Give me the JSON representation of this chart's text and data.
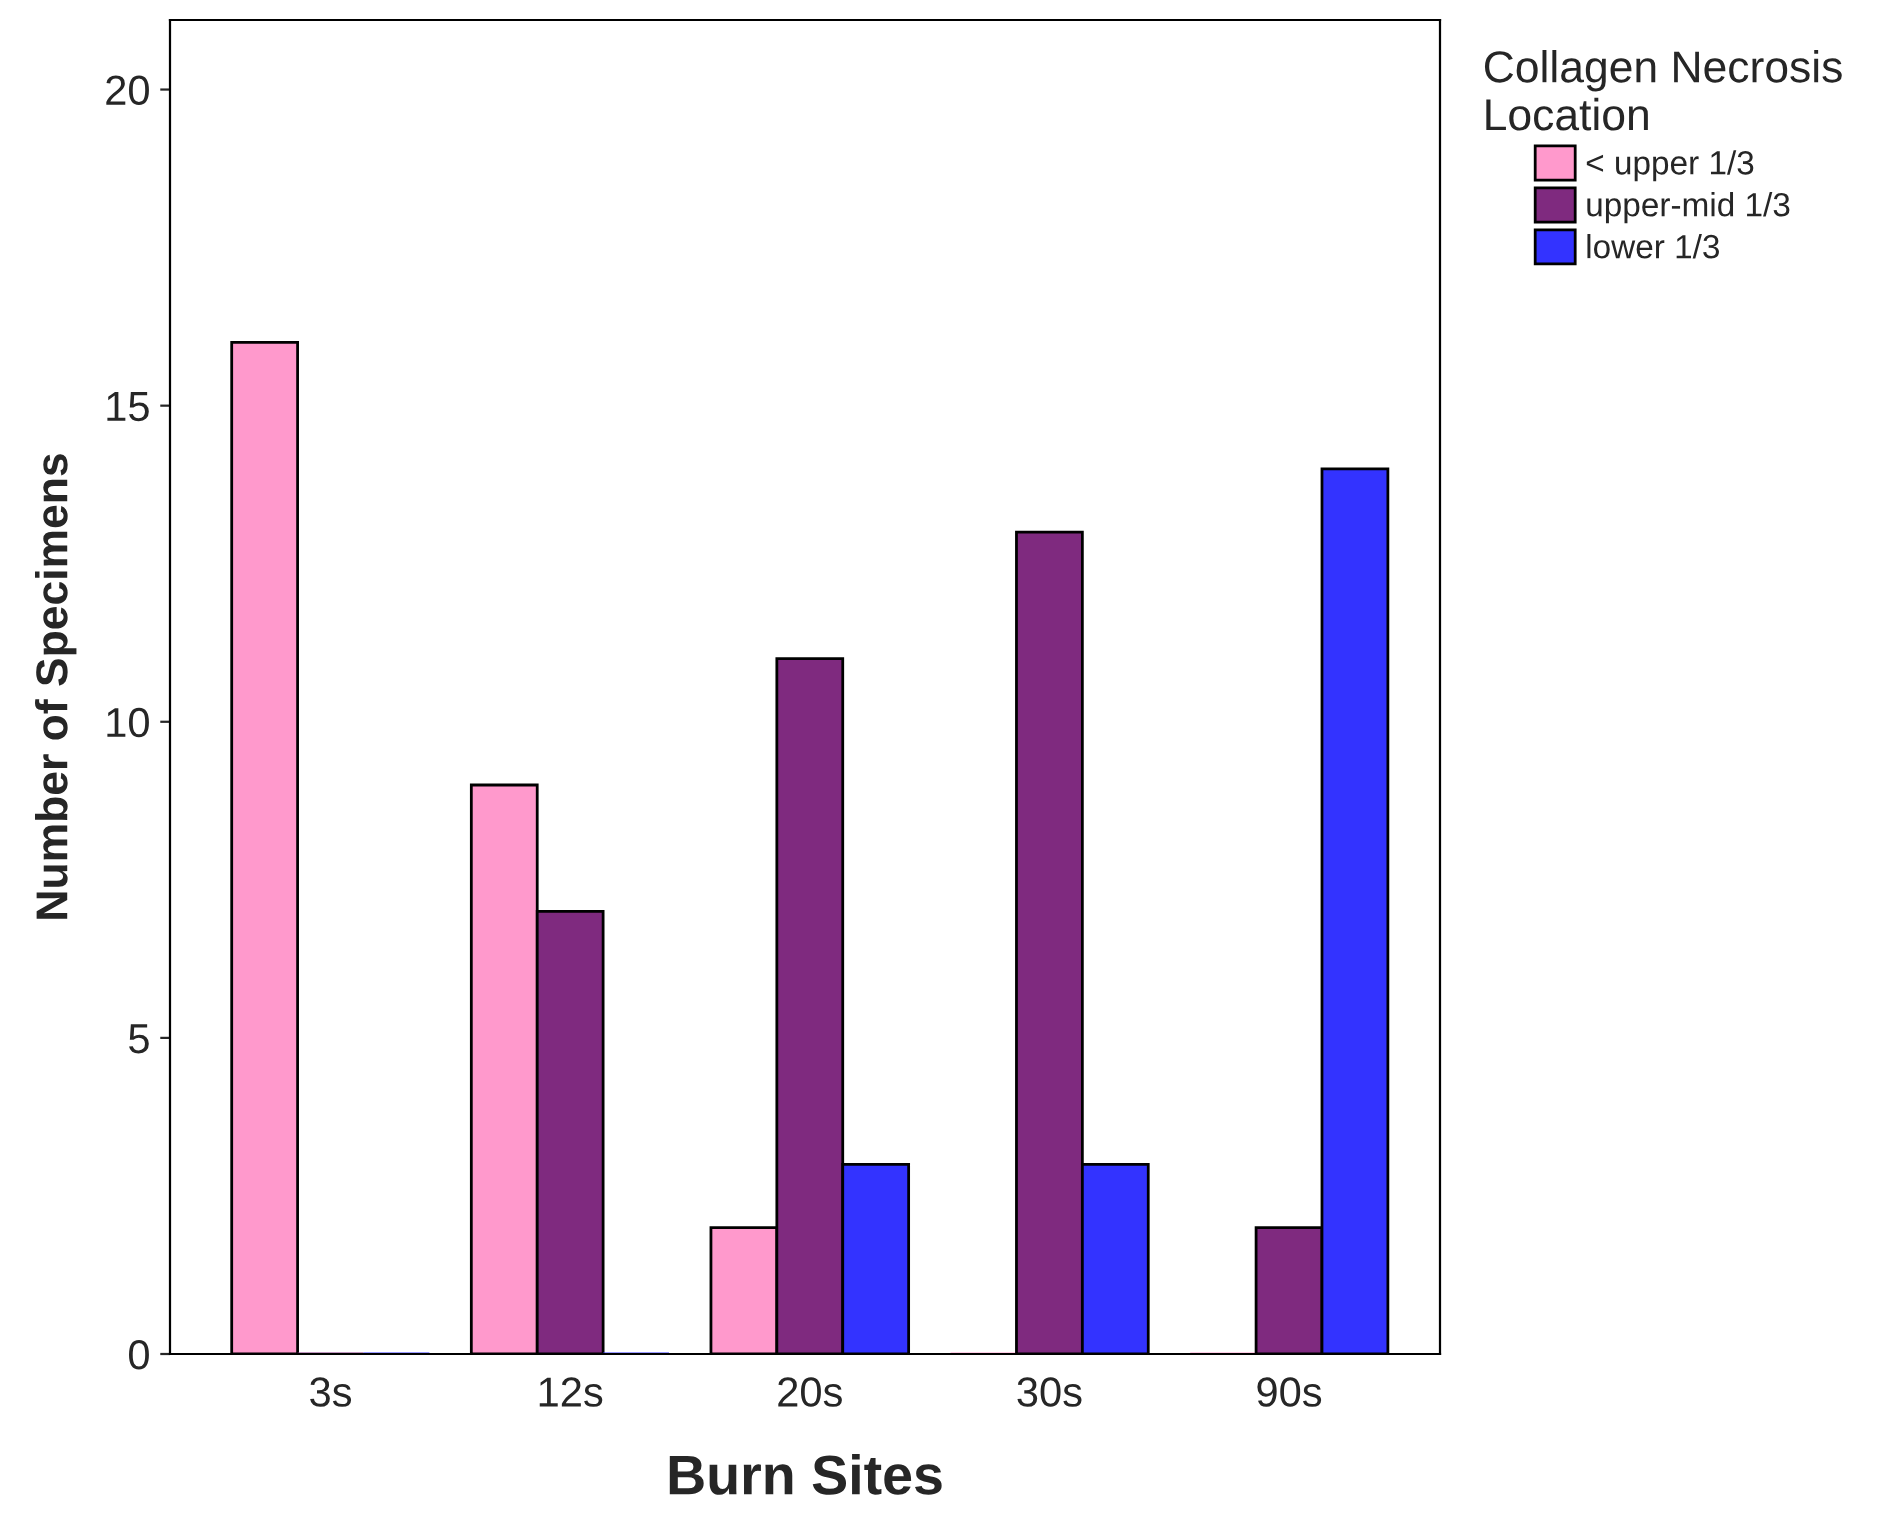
{
  "chart_data": {
    "type": "bar",
    "xlabel": "Burn Sites",
    "ylabel": "Number of Specimens",
    "legend_title": "Collagen Necrosis\nLocation",
    "categories": [
      "3s",
      "12s",
      "20s",
      "30s",
      "90s"
    ],
    "series": [
      {
        "name": "< upper 1/3",
        "color": "#ff99cc",
        "values": [
          16,
          9,
          2,
          0,
          0
        ]
      },
      {
        "name": "upper-mid 1/3",
        "color": "#7f2a7f",
        "values": [
          0,
          7,
          11,
          13,
          2
        ]
      },
      {
        "name": "lower 1/3",
        "color": "#3333ff",
        "values": [
          0,
          0,
          3,
          3,
          14
        ]
      }
    ],
    "ylim": [
      0,
      21.1
    ],
    "yticks": [
      0,
      5,
      10,
      15,
      20
    ],
    "grid": false,
    "legend": "right"
  }
}
